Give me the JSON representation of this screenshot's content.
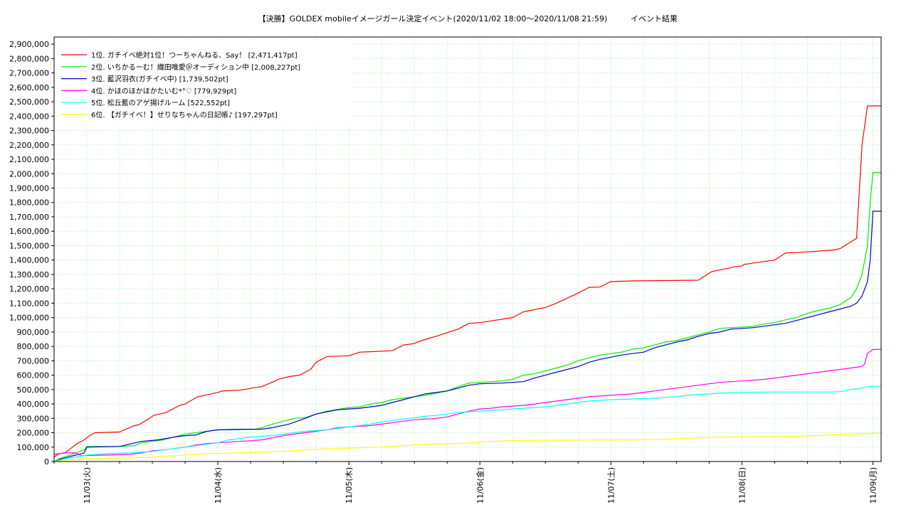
{
  "chart_data": {
    "type": "line",
    "title": "【決勝】GOLDEX mobileイメージガール決定イベント(2020/11/02 18:00〜2020/11/08 21:59)",
    "subtitle": "イベント結果",
    "xlabel": "",
    "ylabel": "",
    "x_unit": "hours since 2020/11/02 18:00",
    "xlim": [
      0,
      151.5
    ],
    "ylim": [
      0,
      2950000
    ],
    "yticks": [
      0,
      100000,
      200000,
      300000,
      400000,
      500000,
      600000,
      700000,
      800000,
      900000,
      1000000,
      1100000,
      1200000,
      1300000,
      1400000,
      1500000,
      1600000,
      1700000,
      1800000,
      1900000,
      2000000,
      2100000,
      2200000,
      2300000,
      2400000,
      2500000,
      2600000,
      2700000,
      2800000,
      2900000
    ],
    "ytick_labels": [
      "0",
      "100,000",
      "200,000",
      "300,000",
      "400,000",
      "500,000",
      "600,000",
      "700,000",
      "800,000",
      "900,000",
      "1,000,000",
      "1,100,000",
      "1,200,000",
      "1,300,000",
      "1,400,000",
      "1,500,000",
      "1,600,000",
      "1,700,000",
      "1,800,000",
      "1,900,000",
      "2,000,000",
      "2,100,000",
      "2,200,000",
      "2,300,000",
      "2,400,000",
      "2,500,000",
      "2,600,000",
      "2,700,000",
      "2,800,000",
      "2,900,000"
    ],
    "xticks": [
      6,
      30,
      54,
      78,
      102,
      126,
      150
    ],
    "xtick_labels": [
      "11/03(火)",
      "11/04(水)",
      "11/05(木)",
      "11/06(金)",
      "11/07(土)",
      "11/08(日)",
      "11/09(月)"
    ],
    "grid": true,
    "legend_position": "top-left",
    "series": [
      {
        "name": "1位. ガチイベ絶対1位！つーちゃんねる、Say！ [2,471,417pt]",
        "color": "#ff0000",
        "x": [
          0,
          0.3,
          1,
          2,
          3.2,
          4,
          5.5,
          6,
          6.5,
          7.5,
          12,
          14.7,
          15.5,
          17.5,
          18.2,
          20.5,
          23,
          24,
          26.3,
          27,
          30,
          30.8,
          34,
          36.2,
          38,
          40.5,
          41,
          43,
          45,
          46,
          47,
          48,
          50,
          54,
          56,
          62,
          64,
          66,
          66.5,
          69,
          70,
          74,
          76,
          78,
          84,
          86,
          90,
          92,
          96,
          98,
          100,
          102,
          106,
          118,
          120.5,
          125,
          126,
          126.5,
          132,
          134,
          136,
          143,
          144,
          147,
          148,
          149,
          150,
          151,
          151.5
        ],
        "y": [
          30000,
          40000,
          55000,
          60000,
          95000,
          120000,
          150000,
          165000,
          180000,
          200000,
          205000,
          250000,
          255000,
          300000,
          320000,
          340000,
          390000,
          400000,
          450000,
          455000,
          480000,
          490000,
          495000,
          510000,
          520000,
          560000,
          570000,
          590000,
          600000,
          620000,
          640000,
          690000,
          730000,
          735000,
          760000,
          770000,
          810000,
          820000,
          830000,
          860000,
          870000,
          920000,
          960000,
          965000,
          1000000,
          1040000,
          1070000,
          1100000,
          1170000,
          1210000,
          1212000,
          1250000,
          1255000,
          1260000,
          1320000,
          1355000,
          1360000,
          1370000,
          1400000,
          1450000,
          1452000,
          1470000,
          1480000,
          1550000,
          2200000,
          2470000,
          2471000,
          2471417,
          2471417
        ]
      },
      {
        "name": "2位. いちかるーむ！織田唯愛＠オーディション中 [2,008,227pt]",
        "color": "#00ee00",
        "x": [
          0,
          1,
          2,
          3,
          4,
          5.5,
          6,
          12,
          14.7,
          16,
          18,
          20,
          22,
          24,
          26,
          28,
          30,
          31,
          33,
          37,
          38,
          40,
          42,
          44,
          46,
          48,
          50,
          54,
          56,
          58,
          60,
          62,
          64,
          66,
          68,
          70,
          72,
          74,
          76,
          78,
          82,
          84,
          86,
          88,
          90,
          92,
          94,
          96,
          98,
          100,
          102,
          104,
          106,
          108,
          110,
          112,
          114,
          116,
          118,
          120,
          122,
          124,
          126,
          128,
          130,
          132,
          134,
          136,
          138,
          140,
          142,
          144,
          146,
          147,
          148,
          149,
          149.5,
          150,
          151.5
        ],
        "y": [
          0,
          20000,
          35000,
          45000,
          60000,
          80000,
          105000,
          105000,
          110000,
          130000,
          140000,
          150000,
          170000,
          190000,
          200000,
          210000,
          220000,
          222000,
          225000,
          225000,
          235000,
          260000,
          280000,
          300000,
          305000,
          330000,
          350000,
          375000,
          380000,
          400000,
          410000,
          430000,
          440000,
          450000,
          460000,
          475000,
          490000,
          520000,
          545000,
          550000,
          560000,
          570000,
          600000,
          610000,
          630000,
          650000,
          670000,
          700000,
          720000,
          740000,
          750000,
          760000,
          780000,
          790000,
          810000,
          830000,
          840000,
          860000,
          880000,
          900000,
          925000,
          930000,
          935000,
          940000,
          955000,
          965000,
          985000,
          1000000,
          1030000,
          1050000,
          1065000,
          1090000,
          1140000,
          1200000,
          1300000,
          1500000,
          1800000,
          2008227,
          2008227
        ]
      },
      {
        "name": "3位. 藍沢羽衣(ガチイベ中) [1,739,502pt]",
        "color": "#0000cc",
        "x": [
          0,
          1,
          2,
          3.5,
          5.5,
          6,
          12,
          16,
          19,
          22,
          24,
          26,
          28,
          30,
          33,
          38,
          40,
          43,
          46,
          48,
          50,
          52,
          56,
          58,
          60,
          62,
          64,
          66,
          68,
          72,
          74,
          76,
          78,
          82,
          84,
          86,
          88,
          90,
          92,
          94,
          96,
          98,
          100,
          102,
          104,
          106,
          108,
          110,
          112,
          114,
          116,
          118,
          120,
          122,
          124,
          126,
          128,
          130,
          132,
          134,
          136,
          138,
          140,
          142,
          144,
          146,
          147,
          148,
          149,
          149.5,
          150,
          151.5
        ],
        "y": [
          0,
          15000,
          25000,
          40000,
          60000,
          100000,
          105000,
          140000,
          150000,
          170000,
          180000,
          185000,
          210000,
          220000,
          222000,
          225000,
          235000,
          260000,
          300000,
          330000,
          345000,
          360000,
          370000,
          380000,
          390000,
          410000,
          430000,
          450000,
          470000,
          490000,
          510000,
          530000,
          540000,
          545000,
          550000,
          555000,
          580000,
          600000,
          620000,
          640000,
          660000,
          690000,
          710000,
          725000,
          740000,
          750000,
          760000,
          790000,
          810000,
          830000,
          845000,
          870000,
          890000,
          900000,
          920000,
          925000,
          930000,
          940000,
          950000,
          960000,
          980000,
          1000000,
          1020000,
          1040000,
          1060000,
          1080000,
          1100000,
          1150000,
          1250000,
          1400000,
          1739502,
          1739502
        ]
      },
      {
        "name": "4位. かほのほかほかたいむ*°♡ [779,929pt]",
        "color": "#ff00ff",
        "x": [
          0,
          1,
          2,
          4,
          5,
          6,
          10,
          14,
          16,
          18,
          20,
          22,
          24,
          26,
          28,
          30,
          32,
          34,
          36,
          38,
          40,
          42,
          44,
          46,
          48,
          50,
          52,
          54,
          56,
          58,
          60,
          62,
          64,
          66,
          68,
          70,
          72,
          74,
          76,
          78,
          80,
          82,
          84,
          86,
          88,
          90,
          92,
          94,
          96,
          98,
          100,
          102,
          104,
          106,
          108,
          110,
          112,
          114,
          116,
          118,
          120,
          122,
          124,
          126,
          128,
          130,
          132,
          134,
          136,
          138,
          140,
          142,
          144,
          146,
          148,
          148.5,
          149,
          150,
          151.5
        ],
        "y": [
          50000,
          55000,
          60000,
          60000,
          40000,
          42000,
          45000,
          50000,
          60000,
          75000,
          80000,
          90000,
          100000,
          115000,
          125000,
          130000,
          135000,
          140000,
          145000,
          150000,
          165000,
          180000,
          190000,
          200000,
          210000,
          220000,
          235000,
          240000,
          245000,
          250000,
          260000,
          270000,
          280000,
          290000,
          295000,
          300000,
          310000,
          330000,
          350000,
          365000,
          370000,
          380000,
          385000,
          390000,
          400000,
          410000,
          420000,
          430000,
          440000,
          450000,
          455000,
          460000,
          465000,
          470000,
          480000,
          490000,
          500000,
          510000,
          520000,
          530000,
          540000,
          550000,
          555000,
          560000,
          565000,
          570000,
          580000,
          590000,
          600000,
          610000,
          620000,
          630000,
          640000,
          650000,
          660000,
          680000,
          750000,
          779000,
          779929
        ]
      },
      {
        "name": "5位. 松丘藍のアゲ揚げルーム [522,552pt]",
        "color": "#00ffff",
        "x": [
          0,
          1,
          2,
          4,
          6,
          10,
          14,
          16,
          18,
          20,
          22,
          24,
          26,
          28,
          30,
          32,
          34,
          36,
          38,
          40,
          42,
          44,
          46,
          48,
          50,
          52,
          54,
          56,
          58,
          60,
          62,
          64,
          66,
          68,
          70,
          72,
          74,
          76,
          78,
          80,
          82,
          84,
          86,
          88,
          90,
          92,
          94,
          96,
          98,
          100,
          102,
          104,
          106,
          108,
          110,
          112,
          114,
          116,
          118,
          120,
          122,
          124,
          126,
          128,
          130,
          132,
          134,
          136,
          138,
          140,
          142,
          144,
          146,
          148,
          149,
          150,
          151.5
        ],
        "y": [
          0,
          10000,
          20000,
          30000,
          45000,
          55000,
          60000,
          65000,
          70000,
          80000,
          90000,
          100000,
          110000,
          120000,
          130000,
          150000,
          160000,
          170000,
          175000,
          180000,
          190000,
          200000,
          210000,
          215000,
          220000,
          230000,
          240000,
          250000,
          260000,
          275000,
          285000,
          295000,
          305000,
          315000,
          320000,
          330000,
          340000,
          345000,
          350000,
          355000,
          360000,
          365000,
          370000,
          375000,
          380000,
          390000,
          400000,
          410000,
          420000,
          425000,
          430000,
          432000,
          435000,
          438000,
          440000,
          445000,
          450000,
          460000,
          465000,
          470000,
          475000,
          478000,
          480000,
          482000,
          482000,
          483000,
          483000,
          483000,
          483000,
          483000,
          483000,
          485000,
          500000,
          510000,
          520000,
          522000,
          522552
        ]
      },
      {
        "name": "6位. 【ガチイベ！】せりなちゃんの日記帳♪ [197,297pt]",
        "color": "#ffff00",
        "x": [
          0,
          1,
          2,
          4,
          6,
          10,
          14,
          18,
          22,
          26,
          28,
          30,
          32,
          34,
          36,
          38,
          40,
          42,
          44,
          46,
          48,
          50,
          52,
          54,
          56,
          58,
          60,
          62,
          64,
          66,
          68,
          70,
          72,
          74,
          76,
          78,
          80,
          82,
          84,
          86,
          88,
          90,
          92,
          94,
          96,
          98,
          100,
          102,
          104,
          106,
          108,
          110,
          112,
          114,
          116,
          118,
          120,
          122,
          124,
          126,
          128,
          130,
          132,
          134,
          136,
          138,
          140,
          142,
          144,
          146,
          148,
          150,
          151.5
        ],
        "y": [
          0,
          5000,
          10000,
          15000,
          20000,
          22000,
          25000,
          30000,
          40000,
          50000,
          55000,
          57000,
          58000,
          60000,
          62000,
          65000,
          68000,
          70000,
          75000,
          80000,
          85000,
          88000,
          90000,
          93000,
          95000,
          98000,
          100000,
          105000,
          110000,
          115000,
          120000,
          122000,
          123000,
          125000,
          130000,
          135000,
          140000,
          143000,
          145000,
          146000,
          147000,
          148000,
          148000,
          148000,
          149000,
          149000,
          150000,
          150000,
          150000,
          150000,
          151000,
          152000,
          155000,
          160000,
          162000,
          165000,
          168000,
          170000,
          170000,
          170000,
          171000,
          172000,
          172000,
          174000,
          176000,
          178000,
          180000,
          185000,
          188000,
          190000,
          192000,
          195000,
          197297
        ]
      }
    ]
  }
}
